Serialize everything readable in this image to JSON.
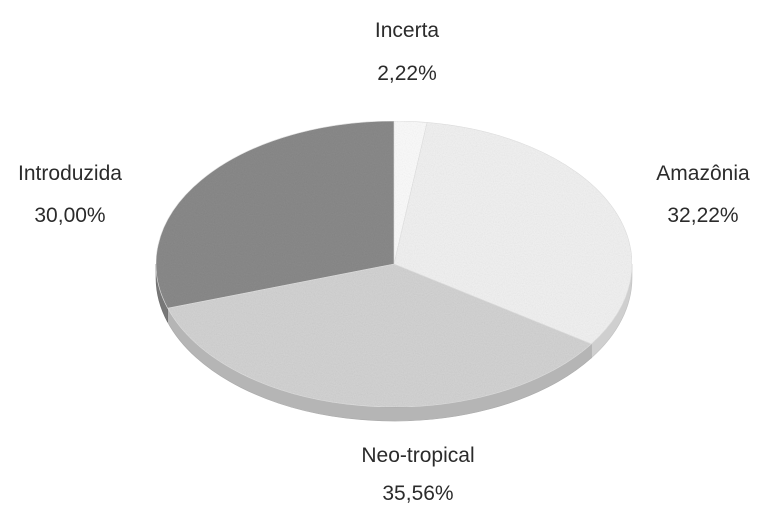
{
  "chart_data": {
    "type": "pie",
    "style": "3d",
    "title": "",
    "slices": [
      {
        "label": "Incerta",
        "value": 2.22,
        "value_label": "2,22%",
        "color": "#fbfbfb"
      },
      {
        "label": "Amazônia",
        "value": 32.22,
        "value_label": "32,22%",
        "color": "#f1f1f1"
      },
      {
        "label": "Neo-tropical",
        "value": 35.56,
        "value_label": "35,56%",
        "color": "#d3d3d3"
      },
      {
        "label": "Introduzida",
        "value": 30.0,
        "value_label": "30,00%",
        "color": "#8a8a8a"
      }
    ],
    "start_angle_deg": 0,
    "direction": "clockwise",
    "legend": "none"
  }
}
